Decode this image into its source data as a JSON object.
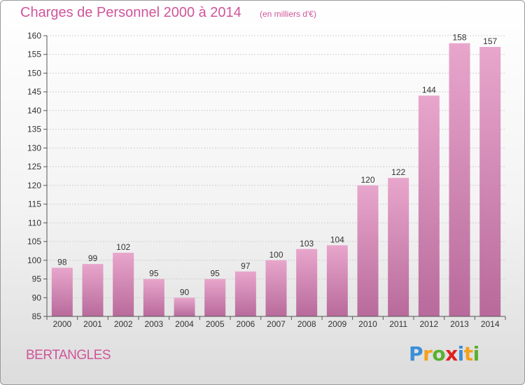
{
  "title": "Charges de Personnel 2000 à 2014",
  "subtitle": "(en milliers d'€)",
  "commune": "BERTANGLES",
  "logo": {
    "text": "Proxiti",
    "letters": [
      "P",
      "r",
      "o",
      "x",
      "i",
      "t",
      "i"
    ],
    "colors": [
      "#3a8fd8",
      "#f4a11e",
      "#5ab031",
      "#e0201e",
      "#3a8fd8",
      "#f4a11e",
      "#5ab031"
    ]
  },
  "colors": {
    "title": "#d0559a",
    "bar_top": "#e8a6cc",
    "bar_bottom": "#b86a9b"
  },
  "chart_data": {
    "type": "bar",
    "categories": [
      "2000",
      "2001",
      "2002",
      "2003",
      "2004",
      "2005",
      "2006",
      "2007",
      "2008",
      "2009",
      "2010",
      "2011",
      "2012",
      "2013",
      "2014"
    ],
    "values": [
      98,
      99,
      102,
      95,
      90,
      95,
      97,
      100,
      103,
      104,
      120,
      122,
      144,
      158,
      157
    ],
    "ylim": [
      85,
      160
    ],
    "yticks": [
      85,
      90,
      95,
      100,
      105,
      110,
      115,
      120,
      125,
      130,
      135,
      140,
      145,
      150,
      155,
      160
    ],
    "grid": true,
    "data_labels": true
  }
}
